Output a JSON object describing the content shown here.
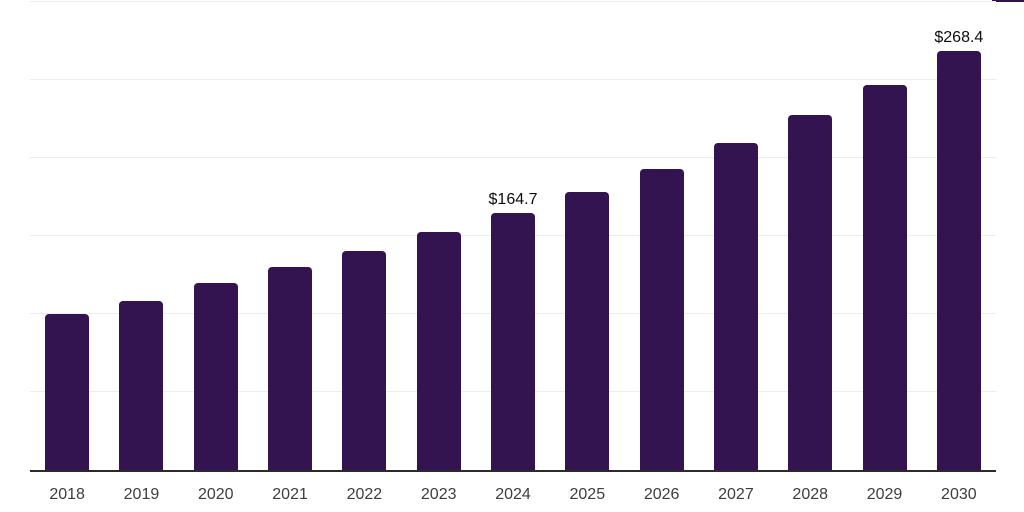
{
  "chart_data": {
    "type": "bar",
    "title": "",
    "xlabel": "",
    "ylabel": "",
    "categories": [
      "2018",
      "2019",
      "2020",
      "2021",
      "2022",
      "2023",
      "2024",
      "2025",
      "2026",
      "2027",
      "2028",
      "2029",
      "2030"
    ],
    "values": [
      100.3,
      108.4,
      120.0,
      130.0,
      140.7,
      152.4,
      164.7,
      177.9,
      192.8,
      209.8,
      227.5,
      247.0,
      268.4
    ],
    "data_labels": [
      "",
      "",
      "",
      "",
      "",
      "",
      "$164.7",
      "",
      "",
      "",
      "",
      "",
      "$268.4"
    ],
    "bar_color": "#341450",
    "axis_line_color": "#2b2b2b",
    "gridline_color": "#ededed",
    "tick_label_color": "#3d3d3d",
    "value_label_color": "#0d0d0d",
    "ylim": [
      0,
      300
    ],
    "gridline_step": 50,
    "grid": true,
    "legend_position": "none"
  }
}
